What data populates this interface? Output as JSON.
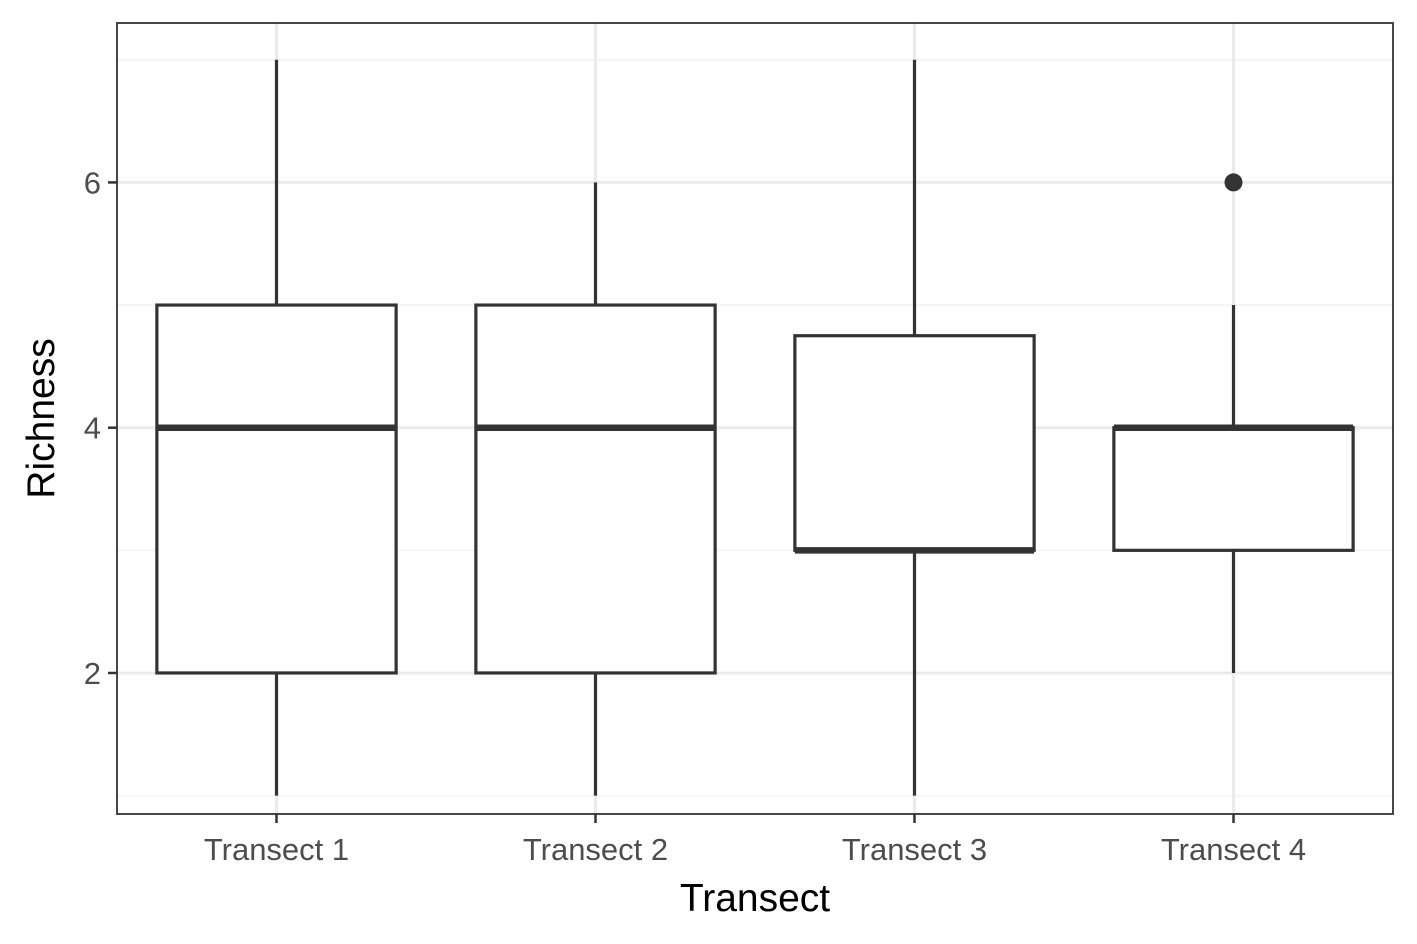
{
  "chart_data": {
    "type": "boxplot",
    "title": "",
    "xlabel": "Transect",
    "ylabel": "Richness",
    "ylim": [
      0.85,
      7.3
    ],
    "y_major_ticks": [
      2,
      4,
      6
    ],
    "y_minor_gridlines": [
      1,
      3,
      5,
      7
    ],
    "grid": true,
    "categories": [
      "Transect 1",
      "Transect 2",
      "Transect 3",
      "Transect 4"
    ],
    "boxes": [
      {
        "category": "Transect 1",
        "whisker_low": 1,
        "q1": 2,
        "median": 4,
        "q3": 5,
        "whisker_high": 7,
        "outliers": []
      },
      {
        "category": "Transect 2",
        "whisker_low": 1,
        "q1": 2,
        "median": 4,
        "q3": 5,
        "whisker_high": 6,
        "outliers": []
      },
      {
        "category": "Transect 3",
        "whisker_low": 1,
        "q1": 3,
        "median": 3,
        "q3": 4.75,
        "whisker_high": 7,
        "outliers": []
      },
      {
        "category": "Transect 4",
        "whisker_low": 2,
        "q1": 3,
        "median": 4,
        "q3": 4,
        "whisker_high": 5,
        "outliers": [
          6
        ]
      }
    ],
    "colors": {
      "box_stroke": "#333333",
      "box_fill": "#ffffff",
      "grid_major": "#ebebeb",
      "grid_minor": "#f2f2f2",
      "panel_border": "#333333",
      "tick_text": "#4d4d4d",
      "axis_title": "#000000"
    }
  }
}
